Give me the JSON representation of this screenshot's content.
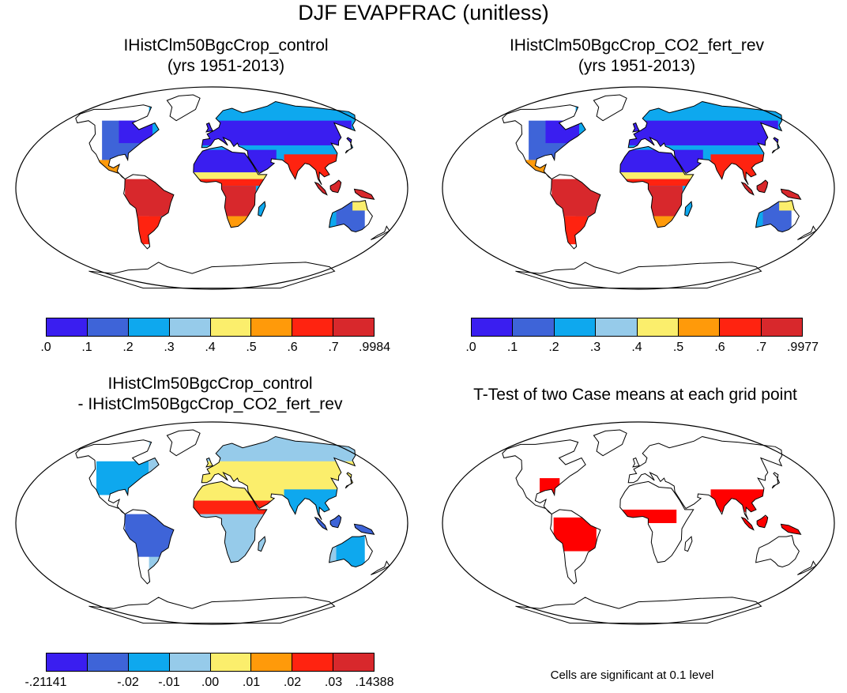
{
  "figure_title": "DJF EVAPFRAC (unitless)",
  "panels": [
    {
      "title_line1": "IHistClm50BgcCrop_control",
      "title_line2": "(yrs 1951-2013)"
    },
    {
      "title_line1": "IHistClm50BgcCrop_CO2_fert_rev",
      "title_line2": "(yrs 1951-2013)"
    },
    {
      "title_line1": "IHistClm50BgcCrop_control",
      "title_line2": "- IHistClm50BgcCrop_CO2_fert_rev"
    },
    {
      "title_line1": "T-Test of two Case means at each grid point",
      "title_line2": ""
    }
  ],
  "colorbars": [
    {
      "colors": [
        "#3a1ef0",
        "#3e64d8",
        "#0ea8ee",
        "#96cbea",
        "#fbee6c",
        "#ff9a0a",
        "#ff2310",
        "#d8282c"
      ],
      "labels": [
        ".0",
        ".1",
        ".2",
        ".3",
        ".4",
        ".5",
        ".6",
        ".7",
        ".9984"
      ]
    },
    {
      "colors": [
        "#3a1ef0",
        "#3e64d8",
        "#0ea8ee",
        "#96cbea",
        "#fbee6c",
        "#ff9a0a",
        "#ff2310",
        "#d8282c"
      ],
      "labels": [
        ".0",
        ".1",
        ".2",
        ".3",
        ".4",
        ".5",
        ".6",
        ".7",
        ".9977"
      ]
    },
    {
      "colors": [
        "#3a1ef0",
        "#3e64d8",
        "#0ea8ee",
        "#96cbea",
        "#fbee6c",
        "#ff9a0a",
        "#ff2310",
        "#d8282c"
      ],
      "labels": [
        "-.21141",
        "",
        "-.02",
        "-.01",
        ".00",
        ".01",
        ".02",
        ".03",
        ".14388"
      ]
    }
  ],
  "significance_note": "Cells are significant at 0.1 level",
  "significance_color": "#ff0000"
}
